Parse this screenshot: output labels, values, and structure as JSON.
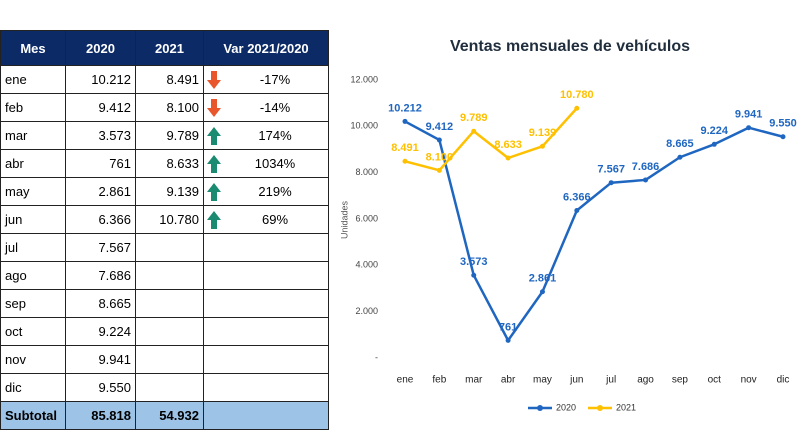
{
  "table": {
    "header": [
      "Mes",
      "2020",
      "2021",
      "Var 2021/2020"
    ],
    "rows": [
      [
        "ene",
        "10.212",
        "8.491",
        "-17%"
      ],
      [
        "feb",
        "9.412",
        "8.100",
        "-14%"
      ],
      [
        "mar",
        "3.573",
        "9.789",
        "174%"
      ],
      [
        "abr",
        "761",
        "8.633",
        "1034%"
      ],
      [
        "may",
        "2.861",
        "9.139",
        "219%"
      ],
      [
        "jun",
        "6.366",
        "10.780",
        "69%"
      ],
      [
        "jul",
        "7.567"
      ],
      [
        "ago",
        "7.686"
      ],
      [
        "sep",
        "8.665"
      ],
      [
        "oct",
        "9.224"
      ],
      [
        "nov",
        "9.941"
      ],
      [
        "dic",
        "9.550"
      ]
    ],
    "subtotal": [
      "Subtotal",
      "85.818",
      "54.932"
    ]
  },
  "chart_data": {
    "type": "line",
    "title": "Ventas mensuales de vehículos",
    "y_label": "Unidades",
    "categories": [
      "ene",
      "feb",
      "mar",
      "abr",
      "may",
      "jun",
      "jul",
      "ago",
      "sep",
      "oct",
      "nov",
      "dic"
    ],
    "series": [
      {
        "name": "2020",
        "color": "#1f66c1",
        "values": [
          10212,
          9412,
          3573,
          761,
          2861,
          6366,
          7567,
          7686,
          8665,
          9224,
          9941,
          9550
        ],
        "value_labels": [
          "10.212",
          "9.412",
          "3.573",
          "761",
          "2.861",
          "6.366",
          "7.567",
          "7.686",
          "8.665",
          "9.224",
          "9.941",
          "9.550"
        ]
      },
      {
        "name": "2021",
        "color": "#ffc000",
        "values": [
          8491,
          8100,
          9789,
          8633,
          9139,
          10780,
          null,
          null,
          null,
          null,
          null,
          null
        ],
        "value_labels": [
          "8.491",
          "8.100",
          "9.789",
          "8.633",
          "9.139",
          "10.780",
          null,
          null,
          null,
          null,
          null,
          null
        ]
      }
    ],
    "ylim": [
      0,
      12000
    ],
    "yticks": [
      {
        "value": 0,
        "label": "-"
      },
      {
        "value": 2000,
        "label": "2.000"
      },
      {
        "value": 4000,
        "label": "4.000"
      },
      {
        "value": 6000,
        "label": "6.000"
      },
      {
        "value": 8000,
        "label": "8.000"
      },
      {
        "value": 10000,
        "label": "10.000"
      },
      {
        "value": 12000,
        "label": "12.000"
      }
    ],
    "legend": "bottom"
  }
}
